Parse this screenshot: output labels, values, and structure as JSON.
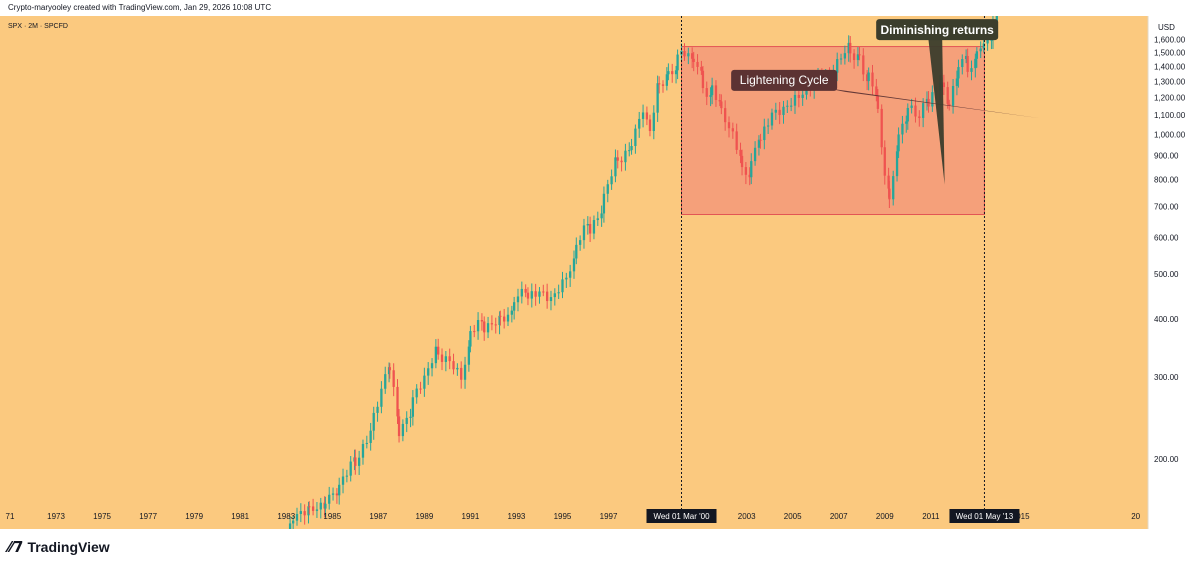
{
  "header": {
    "attribution": "Crypto-maryooley created with TradingView.com, Jan 29, 2026 10:08 UTC"
  },
  "footer": {
    "brand": "TradingView"
  },
  "chart_data": {
    "type": "candlestick",
    "symbol_label": "SPX · 2M · SPCFD",
    "currency_label": "USD",
    "x_ticks": [
      "71",
      "1973",
      "1975",
      "1977",
      "1979",
      "1981",
      "1983",
      "1985",
      "1987",
      "1989",
      "1991",
      "1993",
      "1995",
      "1997",
      "2003",
      "2005",
      "2007",
      "2009",
      "2011",
      "015",
      "20"
    ],
    "y_ticks": [
      "1,600.00",
      "1,500.00",
      "1,400.00",
      "1,300.00",
      "1,200.00",
      "1,100.00",
      "1,000.00",
      "900.00",
      "800.00",
      "700.00",
      "600.00",
      "500.00",
      "400.00",
      "300.00",
      "200.00"
    ],
    "xlim": [
      1971,
      2020
    ],
    "ylim_log": [
      160,
      1780
    ],
    "closes": [
      [
        1981.5,
        120
      ],
      [
        1982.5,
        110
      ],
      [
        1983.3,
        155
      ],
      [
        1984.0,
        160
      ],
      [
        1984.7,
        165
      ],
      [
        1985.3,
        175
      ],
      [
        1986.0,
        200
      ],
      [
        1986.8,
        240
      ],
      [
        1987.5,
        315
      ],
      [
        1987.9,
        235
      ],
      [
        1988.5,
        265
      ],
      [
        1989.0,
        290
      ],
      [
        1989.6,
        340
      ],
      [
        1990.1,
        335
      ],
      [
        1990.6,
        310
      ],
      [
        1991.0,
        365
      ],
      [
        1991.6,
        395
      ],
      [
        1992.3,
        410
      ],
      [
        1992.9,
        430
      ],
      [
        1993.5,
        455
      ],
      [
        1994.0,
        470
      ],
      [
        1994.5,
        455
      ],
      [
        1995.0,
        495
      ],
      [
        1995.6,
        560
      ],
      [
        1996.2,
        640
      ],
      [
        1996.8,
        720
      ],
      [
        1997.4,
        880
      ],
      [
        1998.0,
        960
      ],
      [
        1998.5,
        1120
      ],
      [
        1998.8,
        980
      ],
      [
        1999.2,
        1280
      ],
      [
        1999.6,
        1360
      ],
      [
        2000.0,
        1420
      ],
      [
        2000.3,
        1480
      ],
      [
        2000.7,
        1430
      ],
      [
        2001.1,
        1300
      ],
      [
        2001.5,
        1220
      ],
      [
        2001.9,
        1120
      ],
      [
        2002.4,
        990
      ],
      [
        2002.8,
        860
      ],
      [
        2003.2,
        840
      ],
      [
        2003.6,
        990
      ],
      [
        2004.1,
        1110
      ],
      [
        2004.6,
        1120
      ],
      [
        2005.1,
        1170
      ],
      [
        2005.6,
        1210
      ],
      [
        2006.1,
        1280
      ],
      [
        2006.6,
        1290
      ],
      [
        2007.1,
        1420
      ],
      [
        2007.5,
        1510
      ],
      [
        2007.9,
        1470
      ],
      [
        2008.3,
        1290
      ],
      [
        2008.7,
        1160
      ],
      [
        2009.0,
        820
      ],
      [
        2009.2,
        730
      ],
      [
        2009.6,
        1000
      ],
      [
        2010.0,
        1120
      ],
      [
        2010.5,
        1050
      ],
      [
        2010.9,
        1200
      ],
      [
        2011.4,
        1330
      ],
      [
        2011.8,
        1180
      ],
      [
        2012.2,
        1380
      ],
      [
        2012.6,
        1420
      ],
      [
        2013.0,
        1480
      ],
      [
        2013.3,
        1600
      ],
      [
        2013.7,
        1700
      ],
      [
        2014.0,
        1780
      ]
    ],
    "annotations": [
      {
        "label": "Lightening Cycle"
      },
      {
        "label": "Diminishing returns"
      }
    ],
    "markers": [
      {
        "label": "Wed 01 Mar '00",
        "x": 2000.17
      },
      {
        "label": "Wed 01 May '13",
        "x": 2013.33
      }
    ],
    "highlight_box": {
      "x0": 2000.17,
      "x1": 2013.33,
      "y0": 672,
      "y1": 1545
    },
    "colors": {
      "background": "#fbc97f",
      "box": "#f5a07a",
      "box_border": "#e25555",
      "up": "#26a69a",
      "down": "#ef5350",
      "label_lightening": "#5c3333",
      "label_diminishing": "#3b3d2c"
    },
    "grid": false,
    "scale": "log"
  }
}
